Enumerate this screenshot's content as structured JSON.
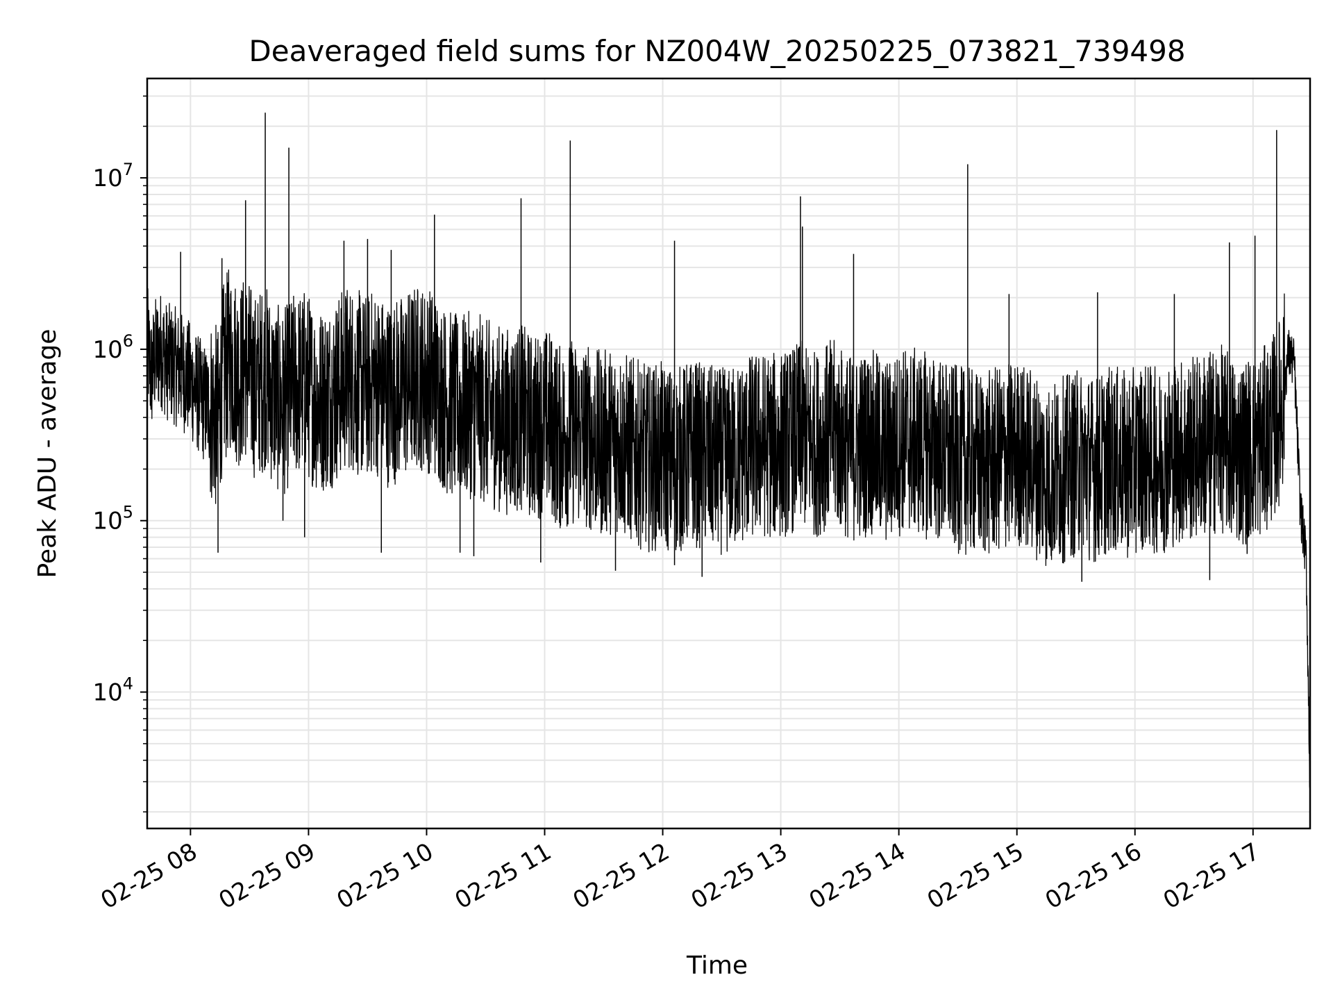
{
  "chart_data": {
    "type": "line",
    "title": "Deaveraged field sums for NZ004W_20250225_073821_739498",
    "xlabel": "Time",
    "ylabel": "Peak ADU - average",
    "y_scale": "log",
    "ylim": [
      1600,
      38000000
    ],
    "xlim": [
      "2025-02-25 07:38",
      "2025-02-25 17:29"
    ],
    "grid": true,
    "line_color": "#000000",
    "grid_color": "#e5e5e5",
    "x_ticks": [
      {
        "time": "2025-02-25 08:00",
        "label": "02-25 08"
      },
      {
        "time": "2025-02-25 09:00",
        "label": "02-25 09"
      },
      {
        "time": "2025-02-25 10:00",
        "label": "02-25 10"
      },
      {
        "time": "2025-02-25 11:00",
        "label": "02-25 11"
      },
      {
        "time": "2025-02-25 12:00",
        "label": "02-25 12"
      },
      {
        "time": "2025-02-25 13:00",
        "label": "02-25 13"
      },
      {
        "time": "2025-02-25 14:00",
        "label": "02-25 14"
      },
      {
        "time": "2025-02-25 15:00",
        "label": "02-25 15"
      },
      {
        "time": "2025-02-25 16:00",
        "label": "02-25 16"
      },
      {
        "time": "2025-02-25 17:00",
        "label": "02-25 17"
      }
    ],
    "y_ticks": [
      {
        "value": 10000,
        "base": "10",
        "exp": "4"
      },
      {
        "value": 100000,
        "base": "10",
        "exp": "5"
      },
      {
        "value": 1000000,
        "base": "10",
        "exp": "6"
      },
      {
        "value": 10000000,
        "base": "10",
        "exp": "7"
      }
    ],
    "series": [
      {
        "x": [
          "2025-02-25 07:38",
          "2025-02-25 07:40",
          "2025-02-25 07:42",
          "2025-02-25 07:45",
          "2025-02-25 07:48",
          "2025-02-25 07:52",
          "2025-02-25 07:55",
          "2025-02-25 07:58",
          "2025-02-25 08:02",
          "2025-02-25 08:06",
          "2025-02-25 08:10",
          "2025-02-25 08:14",
          "2025-02-25 08:16",
          "2025-02-25 08:20",
          "2025-02-25 08:25",
          "2025-02-25 08:28",
          "2025-02-25 08:33",
          "2025-02-25 08:38",
          "2025-02-25 08:42",
          "2025-02-25 08:47",
          "2025-02-25 08:52",
          "2025-02-25 08:58",
          "2025-02-25 09:05",
          "2025-02-25 09:12",
          "2025-02-25 09:20",
          "2025-02-25 09:28",
          "2025-02-25 09:34",
          "2025-02-25 09:40",
          "2025-02-25 09:48",
          "2025-02-25 09:55",
          "2025-02-25 10:03",
          "2025-02-25 10:10",
          "2025-02-25 10:16",
          "2025-02-25 10:24",
          "2025-02-25 10:32",
          "2025-02-25 10:40",
          "2025-02-25 10:48",
          "2025-02-25 10:54",
          "2025-02-25 11:02",
          "2025-02-25 11:08",
          "2025-02-25 11:13",
          "2025-02-25 11:20",
          "2025-02-25 11:28",
          "2025-02-25 11:36",
          "2025-02-25 11:44",
          "2025-02-25 11:52",
          "2025-02-25 12:00",
          "2025-02-25 12:06",
          "2025-02-25 12:15",
          "2025-02-25 12:24",
          "2025-02-25 12:33",
          "2025-02-25 12:42",
          "2025-02-25 12:50",
          "2025-02-25 12:58",
          "2025-02-25 13:07",
          "2025-02-25 13:10",
          "2025-02-25 13:18",
          "2025-02-25 13:26",
          "2025-02-25 13:36",
          "2025-02-25 13:45",
          "2025-02-25 13:54",
          "2025-02-25 14:03",
          "2025-02-25 14:12",
          "2025-02-25 14:20",
          "2025-02-25 14:28",
          "2025-02-25 14:36",
          "2025-02-25 14:44",
          "2025-02-25 14:52",
          "2025-02-25 15:00",
          "2025-02-25 15:08",
          "2025-02-25 15:16",
          "2025-02-25 15:24",
          "2025-02-25 15:32",
          "2025-02-25 15:40",
          "2025-02-25 15:48",
          "2025-02-25 15:56",
          "2025-02-25 16:04",
          "2025-02-25 16:12",
          "2025-02-25 16:20",
          "2025-02-25 16:28",
          "2025-02-25 16:36",
          "2025-02-25 16:44",
          "2025-02-25 16:52",
          "2025-02-25 16:58",
          "2025-02-25 17:04",
          "2025-02-25 17:08",
          "2025-02-25 17:12",
          "2025-02-25 17:15",
          "2025-02-25 17:18",
          "2025-02-25 17:21",
          "2025-02-25 17:24",
          "2025-02-25 17:27",
          "2025-02-25 17:29"
        ],
        "y": [
          1100000,
          700000,
          900000,
          1000000,
          850000,
          800000,
          750000,
          700000,
          600000,
          500000,
          450000,
          380000,
          650000,
          900000,
          700000,
          800000,
          600000,
          700000,
          550000,
          480000,
          600000,
          650000,
          500000,
          550000,
          700000,
          600000,
          650000,
          550000,
          600000,
          700000,
          650000,
          500000,
          450000,
          480000,
          420000,
          380000,
          400000,
          350000,
          380000,
          300000,
          330000,
          320000,
          280000,
          300000,
          260000,
          230000,
          240000,
          220000,
          250000,
          230000,
          220000,
          260000,
          280000,
          270000,
          300000,
          320000,
          280000,
          330000,
          260000,
          290000,
          250000,
          300000,
          280000,
          260000,
          230000,
          220000,
          210000,
          230000,
          250000,
          220000,
          180000,
          200000,
          220000,
          200000,
          230000,
          210000,
          240000,
          220000,
          250000,
          260000,
          280000,
          300000,
          250000,
          260000,
          280000,
          320000,
          380000,
          520000,
          950000,
          820000,
          120000,
          60000,
          2500
        ]
      }
    ],
    "spikes": [
      {
        "x": "2025-02-25 07:55",
        "y": 3700000
      },
      {
        "x": "2025-02-25 08:14",
        "y": 65000
      },
      {
        "x": "2025-02-25 08:16",
        "y": 3400000
      },
      {
        "x": "2025-02-25 08:28",
        "y": 7400000
      },
      {
        "x": "2025-02-25 08:38",
        "y": 24000000
      },
      {
        "x": "2025-02-25 08:47",
        "y": 100000
      },
      {
        "x": "2025-02-25 08:50",
        "y": 15000000
      },
      {
        "x": "2025-02-25 08:58",
        "y": 80000
      },
      {
        "x": "2025-02-25 09:18",
        "y": 4300000
      },
      {
        "x": "2025-02-25 09:30",
        "y": 4400000
      },
      {
        "x": "2025-02-25 09:37",
        "y": 65000
      },
      {
        "x": "2025-02-25 09:42",
        "y": 3800000
      },
      {
        "x": "2025-02-25 10:04",
        "y": 6100000
      },
      {
        "x": "2025-02-25 10:17",
        "y": 65000
      },
      {
        "x": "2025-02-25 10:24",
        "y": 62000
      },
      {
        "x": "2025-02-25 10:48",
        "y": 7600000
      },
      {
        "x": "2025-02-25 10:58",
        "y": 57000
      },
      {
        "x": "2025-02-25 11:13",
        "y": 16500000
      },
      {
        "x": "2025-02-25 11:36",
        "y": 51000
      },
      {
        "x": "2025-02-25 12:06",
        "y": 4300000
      },
      {
        "x": "2025-02-25 12:06",
        "y": 55000
      },
      {
        "x": "2025-02-25 12:20",
        "y": 47000
      },
      {
        "x": "2025-02-25 13:10",
        "y": 7800000
      },
      {
        "x": "2025-02-25 13:11",
        "y": 5200000
      },
      {
        "x": "2025-02-25 13:37",
        "y": 3600000
      },
      {
        "x": "2025-02-25 14:35",
        "y": 12000000
      },
      {
        "x": "2025-02-25 14:56",
        "y": 2100000
      },
      {
        "x": "2025-02-25 15:33",
        "y": 44000
      },
      {
        "x": "2025-02-25 15:41",
        "y": 2150000
      },
      {
        "x": "2025-02-25 16:20",
        "y": 2100000
      },
      {
        "x": "2025-02-25 16:38",
        "y": 45000
      },
      {
        "x": "2025-02-25 16:48",
        "y": 4200000
      },
      {
        "x": "2025-02-25 16:57",
        "y": 64000
      },
      {
        "x": "2025-02-25 17:01",
        "y": 4600000
      },
      {
        "x": "2025-02-25 17:12",
        "y": 19000000
      }
    ]
  }
}
